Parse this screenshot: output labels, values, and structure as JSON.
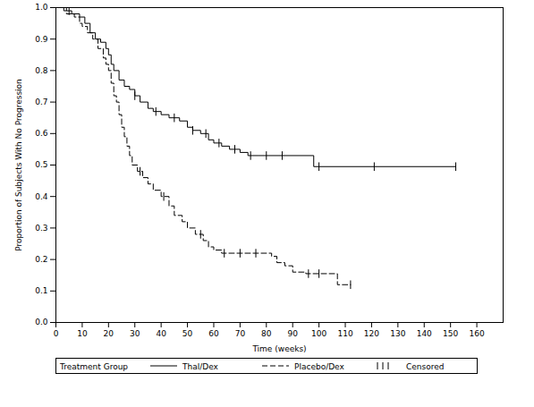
{
  "chart_data": {
    "type": "line",
    "x_label": "Time (weeks)",
    "y_label": "Proportion of Subjects With No Progression",
    "xlim": [
      0,
      170
    ],
    "ylim": [
      0,
      1
    ],
    "xticks": [
      0,
      10,
      20,
      30,
      40,
      50,
      60,
      70,
      80,
      90,
      100,
      110,
      120,
      130,
      140,
      150,
      160
    ],
    "yticks": [
      {
        "value": 0,
        "label": "0.0"
      },
      {
        "value": 0.1,
        "label": "0.1"
      },
      {
        "value": 0.2,
        "label": "0.2"
      },
      {
        "value": 0.3,
        "label": "0.3"
      },
      {
        "value": 0.4,
        "label": "0.4"
      },
      {
        "value": 0.5,
        "label": "0.5"
      },
      {
        "value": 0.6,
        "label": "0.6"
      },
      {
        "value": 0.7,
        "label": "0.7"
      },
      {
        "value": 0.8,
        "label": "0.8"
      },
      {
        "value": 0.9,
        "label": "0.9"
      },
      {
        "value": 1,
        "label": "1.0"
      }
    ],
    "grid": false,
    "legend": "bottom",
    "legend_title": "Treatment Group",
    "series": [
      {
        "name": "Thal/Dex",
        "color": "#000000",
        "line_style": "solid",
        "x": [
          0,
          3,
          6,
          9,
          11,
          13,
          15,
          17,
          19,
          20,
          21,
          22,
          24,
          26,
          28,
          30,
          32,
          35,
          37,
          40,
          43,
          47,
          50,
          52,
          55,
          58,
          60,
          63,
          66,
          70,
          73,
          77,
          98,
          152
        ],
        "values": [
          1.0,
          0.99,
          0.98,
          0.97,
          0.95,
          0.92,
          0.9,
          0.89,
          0.87,
          0.85,
          0.82,
          0.8,
          0.77,
          0.75,
          0.74,
          0.72,
          0.7,
          0.68,
          0.67,
          0.66,
          0.65,
          0.64,
          0.62,
          0.61,
          0.6,
          0.58,
          0.57,
          0.56,
          0.55,
          0.54,
          0.53,
          0.53,
          0.495,
          0.495
        ]
      },
      {
        "name": "Placebo/Dex",
        "color": "#000000",
        "line_style": "dashed",
        "x": [
          0,
          4,
          7,
          9,
          10,
          12,
          14,
          16,
          18,
          19,
          20,
          21,
          22,
          23,
          24,
          25,
          26,
          27,
          28,
          29,
          31,
          33,
          35,
          37,
          40,
          43,
          45,
          48,
          50,
          53,
          56,
          58,
          60,
          63,
          82,
          84,
          87,
          90,
          95,
          107,
          112
        ],
        "values": [
          1.0,
          0.98,
          0.97,
          0.95,
          0.94,
          0.92,
          0.9,
          0.87,
          0.84,
          0.82,
          0.8,
          0.76,
          0.72,
          0.7,
          0.66,
          0.62,
          0.59,
          0.56,
          0.53,
          0.5,
          0.48,
          0.46,
          0.44,
          0.42,
          0.4,
          0.37,
          0.34,
          0.32,
          0.3,
          0.28,
          0.26,
          0.24,
          0.23,
          0.22,
          0.21,
          0.19,
          0.18,
          0.16,
          0.155,
          0.12,
          0.12
        ]
      },
      {
        "name": "Censored",
        "color": "#000000",
        "type": "scatter",
        "marker": "tick",
        "x": [
          5,
          30,
          38,
          45,
          52,
          57,
          62,
          68,
          74,
          80,
          86,
          100,
          121,
          152,
          32,
          41,
          55,
          64,
          70,
          76,
          96,
          100,
          112
        ],
        "values": [
          0.99,
          0.72,
          0.67,
          0.65,
          0.61,
          0.6,
          0.57,
          0.55,
          0.53,
          0.53,
          0.53,
          0.495,
          0.495,
          0.495,
          0.48,
          0.4,
          0.28,
          0.22,
          0.22,
          0.22,
          0.155,
          0.155,
          0.12
        ]
      }
    ]
  }
}
